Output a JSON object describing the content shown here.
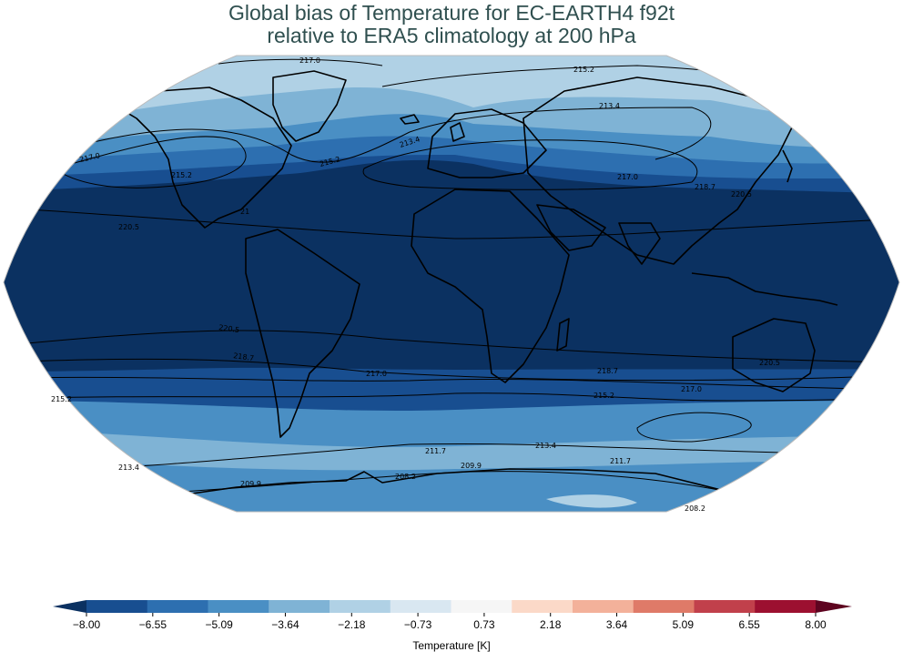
{
  "title": {
    "line1": "Global bias of Temperature for EC-EARTH4 f92t",
    "line2": "relative to ERA5 climatology at 200 hPa"
  },
  "colorbar": {
    "label": "Temperature [K]",
    "ticks": [
      "−8.00",
      "−6.55",
      "−5.09",
      "−3.64",
      "−2.18",
      "−0.73",
      "0.73",
      "2.18",
      "3.64",
      "5.09",
      "6.55",
      "8.00"
    ],
    "colors": [
      "#184e90",
      "#2d6fb0",
      "#4a8fc4",
      "#7fb3d5",
      "#b0d1e5",
      "#d9e7f1",
      "#f6f6f6",
      "#fbd9c8",
      "#f3b19a",
      "#df7a68",
      "#c1404b",
      "#9c1030"
    ],
    "under_color": "#0b3161",
    "over_color": "#5e0420"
  },
  "map": {
    "projection": "Robinson",
    "band_colors": {
      "deep": "#0b3161",
      "dark": "#184e90",
      "mid": "#2d6fb0",
      "light": "#4a8fc4",
      "pale": "#7fb3d5",
      "palest": "#b0d1e5"
    },
    "contour_labels": [
      {
        "text": "217.0",
        "id": "c1"
      },
      {
        "text": "215.2",
        "id": "c2"
      },
      {
        "text": "213.4",
        "id": "c3"
      },
      {
        "text": "213.4",
        "id": "c4"
      },
      {
        "text": "217.0",
        "id": "c5"
      },
      {
        "text": "215.2",
        "id": "c6"
      },
      {
        "text": "215.2",
        "id": "c7"
      },
      {
        "text": "217.0",
        "id": "c8"
      },
      {
        "text": "218.7",
        "id": "c9"
      },
      {
        "text": "220.5",
        "id": "c10"
      },
      {
        "text": "21",
        "id": "c11"
      },
      {
        "text": "220.5",
        "id": "c12"
      },
      {
        "text": "220.5",
        "id": "c13"
      },
      {
        "text": "218.7",
        "id": "c14"
      },
      {
        "text": "217.0",
        "id": "c15"
      },
      {
        "text": "218.7",
        "id": "c16"
      },
      {
        "text": "220.5",
        "id": "c17"
      },
      {
        "text": "217.0",
        "id": "c18"
      },
      {
        "text": "215.2",
        "id": "c19"
      },
      {
        "text": "215.2",
        "id": "c20"
      },
      {
        "text": "213.4",
        "id": "c21"
      },
      {
        "text": "211.7",
        "id": "c22"
      },
      {
        "text": "209.9",
        "id": "c23"
      },
      {
        "text": "211.7",
        "id": "c24"
      },
      {
        "text": "213.4",
        "id": "c25"
      },
      {
        "text": "208.2",
        "id": "c26"
      },
      {
        "text": "209.9",
        "id": "c27"
      },
      {
        "text": "208.2",
        "id": "c28"
      }
    ]
  }
}
